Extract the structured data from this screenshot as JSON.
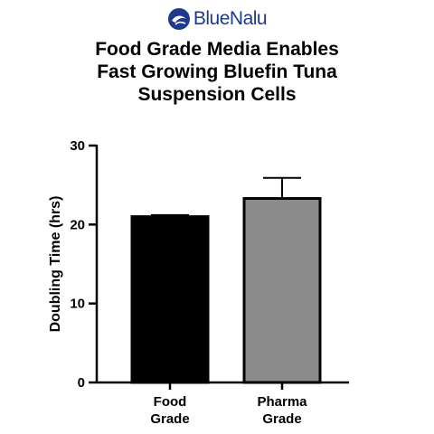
{
  "logo": {
    "text": "BlueNalu",
    "icon": "bluenalu-fish-logo-icon",
    "color": "#1f3a8a"
  },
  "chart_data": {
    "type": "bar",
    "title": [
      "Food Grade Media Enables",
      "Fast Growing Bluefin Tuna",
      "Suspension Cells"
    ],
    "ylabel": "Doubling Time (hrs)",
    "xlabel": "",
    "ylim": [
      0,
      30
    ],
    "yticks": [
      0,
      10,
      20,
      30
    ],
    "categories": [
      [
        "Food",
        "Grade"
      ],
      [
        "Pharma",
        "Grade"
      ]
    ],
    "values": [
      21.0,
      23.3
    ],
    "error_upper": [
      0.2,
      2.6
    ],
    "colors": [
      "#000000",
      "#8c8c8c"
    ],
    "grid": false,
    "legend": "none"
  }
}
